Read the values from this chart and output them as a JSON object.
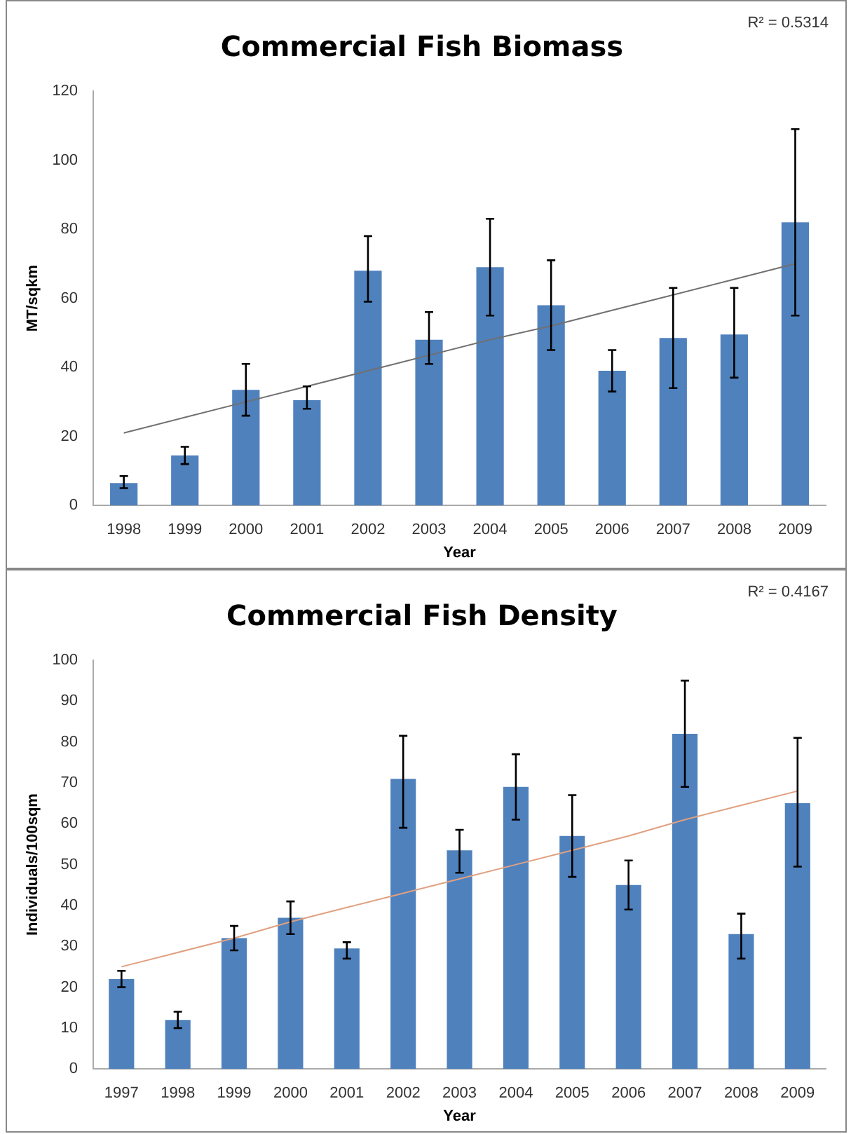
{
  "chart_data": [
    {
      "type": "bar",
      "title": "Commercial Fish Biomass",
      "xlabel": "Year",
      "ylabel": "MT/sqkm",
      "annotations": [
        "R² = 0.5314"
      ],
      "categories": [
        "1998",
        "1999",
        "2000",
        "2001",
        "2002",
        "2003",
        "2004",
        "2005",
        "2006",
        "2007",
        "2008",
        "2009"
      ],
      "series": [
        {
          "color": "#4f81bd",
          "values": [
            6.5,
            14.5,
            33.5,
            30.5,
            68,
            48,
            69,
            58,
            39,
            48.5,
            49.5,
            82
          ],
          "errors": [
            [
              5,
              8.5
            ],
            [
              12,
              17
            ],
            [
              26,
              41
            ],
            [
              28,
              34.5
            ],
            [
              59,
              78
            ],
            [
              41,
              56
            ],
            [
              55,
              83
            ],
            [
              45,
              71
            ],
            [
              33,
              45
            ],
            [
              34,
              63
            ],
            [
              37,
              63
            ],
            [
              55,
              109
            ]
          ]
        },
        {
          "type": "line",
          "color": "#707070",
          "values": [
            21,
            25.5,
            30,
            34.5,
            39,
            43.5,
            48,
            52,
            56.5,
            61,
            65.5,
            70
          ]
        }
      ],
      "ylim": [
        0,
        120
      ],
      "yticks": [
        0,
        20,
        40,
        60,
        80,
        100,
        120
      ],
      "grid": false,
      "legend": false
    },
    {
      "type": "bar",
      "title": "Commercial Fish Density",
      "xlabel": "Year",
      "ylabel": "Individuals/100sqm",
      "annotations": [
        "R² = 0.4167"
      ],
      "categories": [
        "1997",
        "1998",
        "1999",
        "2000",
        "2001",
        "2002",
        "2003",
        "2004",
        "2005",
        "2006",
        "2007",
        "2008",
        "2009"
      ],
      "series": [
        {
          "color": "#4f81bd",
          "values": [
            22,
            12,
            32,
            37,
            29.5,
            71,
            53.5,
            69,
            57,
            45,
            82,
            33,
            65
          ],
          "errors": [
            [
              20,
              24
            ],
            [
              10,
              14
            ],
            [
              29,
              35
            ],
            [
              33,
              41
            ],
            [
              27,
              31
            ],
            [
              59,
              81.5
            ],
            [
              48,
              58.5
            ],
            [
              61,
              77
            ],
            [
              47,
              67
            ],
            [
              39,
              51
            ],
            [
              69,
              95
            ],
            [
              27,
              38
            ],
            [
              49.5,
              81
            ]
          ]
        },
        {
          "type": "line",
          "color": "#e0a080",
          "values": [
            25,
            28.5,
            32,
            36,
            39.5,
            43,
            46.5,
            50,
            53.5,
            57,
            61,
            64.5,
            68
          ]
        }
      ],
      "ylim": [
        0,
        100
      ],
      "yticks": [
        0,
        10,
        20,
        30,
        40,
        50,
        60,
        70,
        80,
        90,
        100
      ],
      "grid": false,
      "legend": false
    }
  ]
}
